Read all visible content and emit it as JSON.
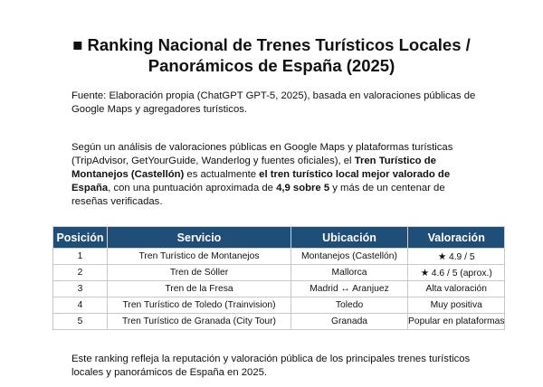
{
  "title": {
    "line1": "■ Ranking Nacional de Trenes Turísticos Locales /",
    "line2": "Panorámicos de España (2025)"
  },
  "source": "Fuente: Elaboración propia (ChatGPT GPT-5, 2025), basada en valoraciones públicas de Google Maps y agregadores turísticos.",
  "intro": {
    "p1": "Según un análisis de valoraciones públicas en Google Maps y plataformas turísticas (TripAdvisor, GetYourGuide, Wanderlog y fuentes oficiales), el ",
    "b1": "Tren Turístico de Montanejos (Castellón)",
    "p2": " es actualmente ",
    "b2": "el tren turístico local mejor valorado de España",
    "p3": ", con una puntuación aproximada de ",
    "b3": "4,9 sobre 5",
    "p4": " y más de un centenar de reseñas verificadas."
  },
  "table": {
    "headers": [
      "Posición",
      "Servicio",
      "Ubicación",
      "Valoración"
    ],
    "rows": [
      [
        "1",
        "Tren Turístico de Montanejos",
        "Montanejos (Castellón)",
        "★ 4.9 / 5"
      ],
      [
        "2",
        "Tren de Sóller",
        "Mallorca",
        "★ 4.6 / 5 (aprox.)"
      ],
      [
        "3",
        "Tren de la Fresa",
        "Madrid ↔ Aranjuez",
        "Alta valoración"
      ],
      [
        "4",
        "Tren Turístico de Toledo (Trainvision)",
        "Toledo",
        "Muy positiva"
      ],
      [
        "5",
        "Tren Turístico de Granada (City Tour)",
        "Granada",
        "Popular en plataformas"
      ]
    ],
    "header_color": "#1f4e79"
  },
  "conclusion": "Este ranking refleja la reputación y valoración pública de los principales trenes turísticos locales y panorámicos de España en 2025."
}
